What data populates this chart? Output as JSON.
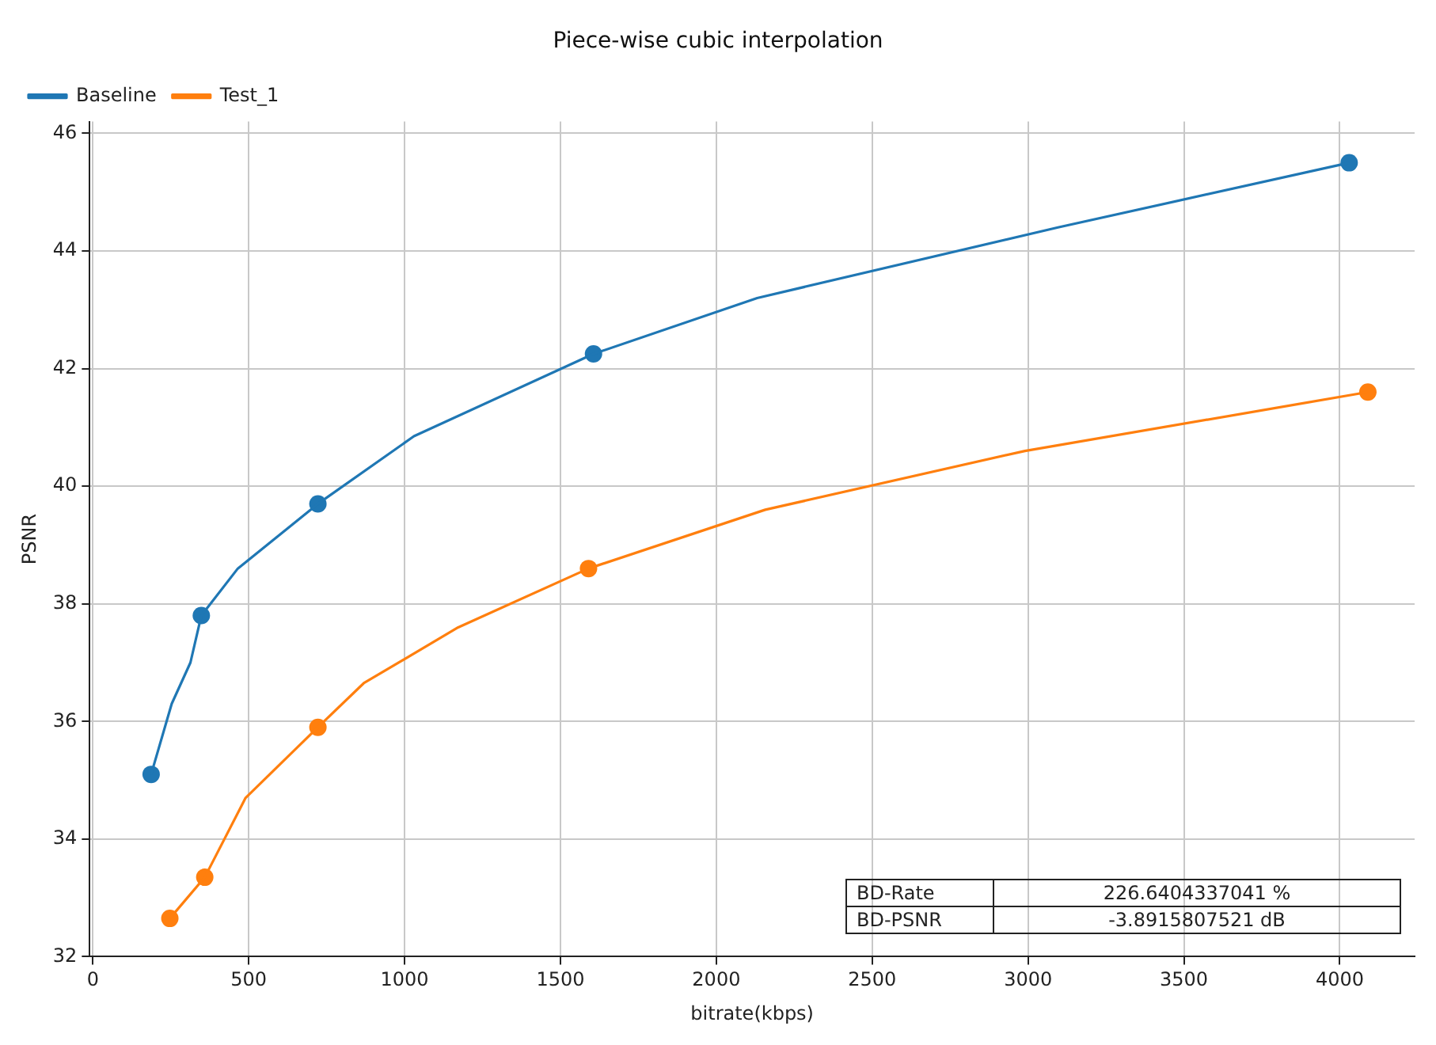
{
  "chart_data": {
    "type": "line",
    "title": "Piece-wise cubic interpolation",
    "xlabel": "bitrate(kbps)",
    "ylabel": "PSNR",
    "xlim": [
      -10,
      4240
    ],
    "ylim": [
      32,
      46.2
    ],
    "xticks": [
      0,
      500,
      1000,
      1500,
      2000,
      2500,
      3000,
      3500,
      4000
    ],
    "yticks": [
      32,
      34,
      36,
      38,
      40,
      42,
      44,
      46
    ],
    "grid": true,
    "legend": "top left",
    "line_style": "solid",
    "series": [
      {
        "name": "Baseline",
        "marker": "none",
        "color": "#1f77b4",
        "x": [
          187,
          253,
          313,
          348,
          465,
          722,
          1030,
          1606,
          2131,
          3096,
          4030
        ],
        "values": [
          35.1,
          36.3,
          37.0,
          37.8,
          38.6,
          39.7,
          40.85,
          42.25,
          43.2,
          44.4,
          45.5
        ]
      },
      {
        "name": "Test_1",
        "marker": "none",
        "color": "#ff7f0e",
        "x": [
          247,
          359,
          490,
          722,
          869,
          1172,
          1590,
          2157,
          2990,
          4090
        ],
        "values": [
          32.65,
          33.35,
          34.7,
          35.9,
          36.65,
          37.6,
          38.6,
          39.6,
          40.6,
          41.6
        ]
      },
      {
        "type": "scatter",
        "marker": "circle",
        "color": "#1f77b4",
        "x": [
          187,
          348,
          722,
          1606,
          4030
        ],
        "values": [
          35.1,
          37.8,
          39.7,
          42.25,
          45.5
        ]
      },
      {
        "type": "scatter",
        "marker": "circle",
        "color": "#ff7f0e",
        "x": [
          247,
          359,
          722,
          1590,
          4090
        ],
        "values": [
          32.65,
          33.35,
          35.9,
          38.6,
          41.6
        ]
      }
    ],
    "annotations": [
      "BD-Rate",
      "226.6404337041 %",
      "BD-PSNR",
      "-3.8915807521 dB"
    ]
  }
}
